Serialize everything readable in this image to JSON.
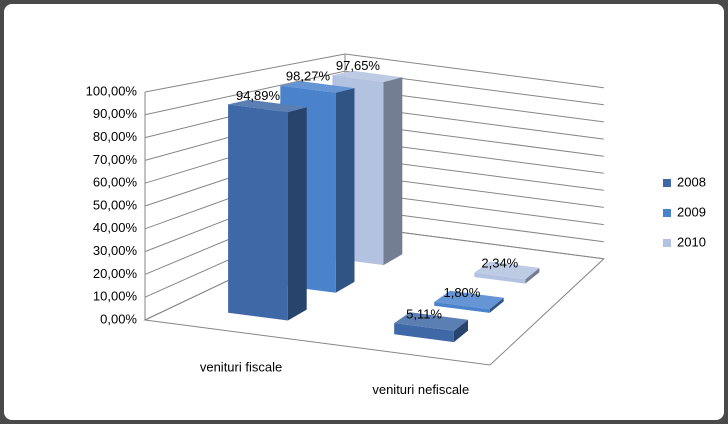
{
  "chart_data": {
    "type": "bar",
    "categories": [
      "venituri fiscale",
      "venituri nefiscale"
    ],
    "series": [
      {
        "name": "2008",
        "color": "#3f68a6",
        "values": [
          94.89,
          5.11
        ],
        "value_labels": [
          "94,89%",
          "5,11%"
        ]
      },
      {
        "name": "2009",
        "color": "#4a82cc",
        "values": [
          98.27,
          1.8
        ],
        "value_labels": [
          "98,27%",
          "1,80%"
        ]
      },
      {
        "name": "2010",
        "color": "#b3c2e0",
        "values": [
          97.65,
          2.34
        ],
        "value_labels": [
          "97,65%",
          "2,34%"
        ]
      }
    ],
    "ylim": [
      0,
      100
    ],
    "yticks": [
      {
        "value": 0,
        "label": "0,00%"
      },
      {
        "value": 10,
        "label": "10,00%"
      },
      {
        "value": 20,
        "label": "20,00%"
      },
      {
        "value": 30,
        "label": "30,00%"
      },
      {
        "value": 40,
        "label": "40,00%"
      },
      {
        "value": 50,
        "label": "50,00%"
      },
      {
        "value": 60,
        "label": "60,00%"
      },
      {
        "value": 70,
        "label": "70,00%"
      },
      {
        "value": 80,
        "label": "80,00%"
      },
      {
        "value": 90,
        "label": "90,00%"
      },
      {
        "value": 100,
        "label": "100,00%"
      }
    ],
    "grid": true,
    "legend": "right"
  }
}
